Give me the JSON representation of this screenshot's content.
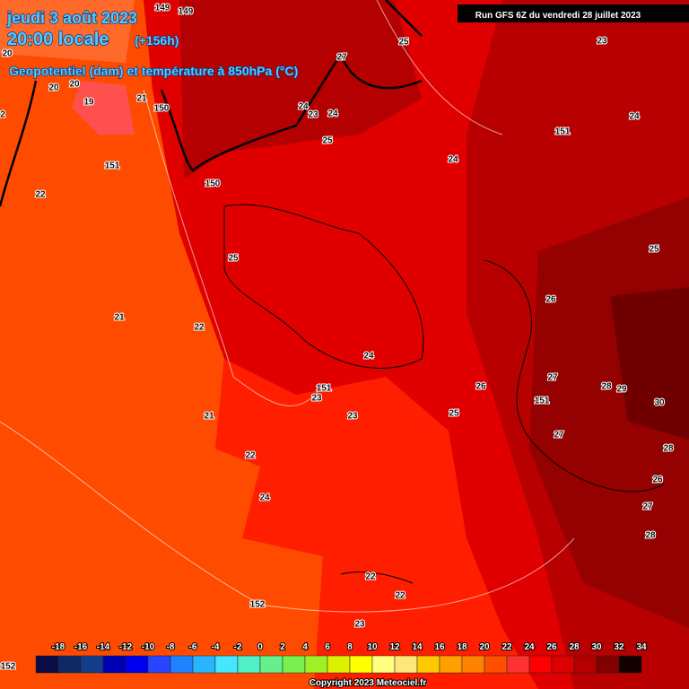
{
  "header": {
    "date": "jeudi 3 août 2023",
    "time": "20:00 locale",
    "lead": "(+156h)",
    "subtitle": "Geopotentiel (dam) et température à 850hPa (°C)",
    "run": "Run GFS 6Z du vendredi 28 juillet 2023"
  },
  "contour_labels": [
    149,
    149,
    20,
    20,
    20,
    19,
    21,
    150,
    2,
    151,
    22,
    150,
    25,
    27,
    24,
    23,
    24,
    25,
    23,
    24,
    151,
    24,
    25,
    25,
    26,
    21,
    22,
    24,
    151,
    23,
    26,
    27,
    28,
    29,
    151,
    30,
    23,
    25,
    21,
    27,
    28,
    22,
    26,
    24,
    27,
    28,
    22,
    22,
    152,
    23,
    152
  ],
  "scale": {
    "labels": [
      -18,
      -16,
      -14,
      -12,
      -10,
      -8,
      -6,
      -4,
      -2,
      0,
      2,
      4,
      6,
      8,
      10,
      12,
      14,
      16,
      18,
      20,
      22,
      24,
      26,
      28,
      30,
      32,
      34
    ],
    "colors": [
      "#0c0c46",
      "#0e2a64",
      "#143c8c",
      "#0000b4",
      "#0000f0",
      "#2846ff",
      "#1e82ff",
      "#28b4ff",
      "#46e6ff",
      "#50f0c8",
      "#64f08c",
      "#78f050",
      "#a0f028",
      "#dcf000",
      "#ffff00",
      "#ffff80",
      "#ffe678",
      "#ffc800",
      "#ffa000",
      "#ff8200",
      "#ff5000",
      "#ff3232",
      "#ff0000",
      "#dc0000",
      "#b40000",
      "#820000",
      "#140000"
    ]
  },
  "footer": {
    "copyright": "Copyright 2023 Meteociel.fr"
  }
}
